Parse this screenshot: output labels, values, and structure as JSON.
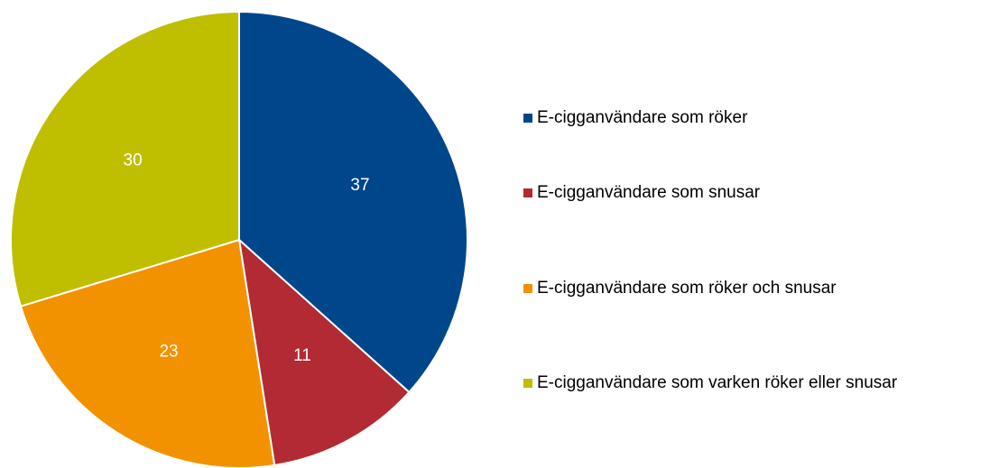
{
  "chart_data": {
    "type": "pie",
    "categories": [
      "E-cigganvändare som röker",
      "E-cigganvändare som snusar",
      "E-cigganvändare som röker och snusar",
      "E-cigganvändare som varken röker eller snusar"
    ],
    "values": [
      37,
      11,
      23,
      30
    ],
    "colors": [
      "#00468b",
      "#b22a33",
      "#f29200",
      "#bfbf00"
    ],
    "legend": "right"
  }
}
